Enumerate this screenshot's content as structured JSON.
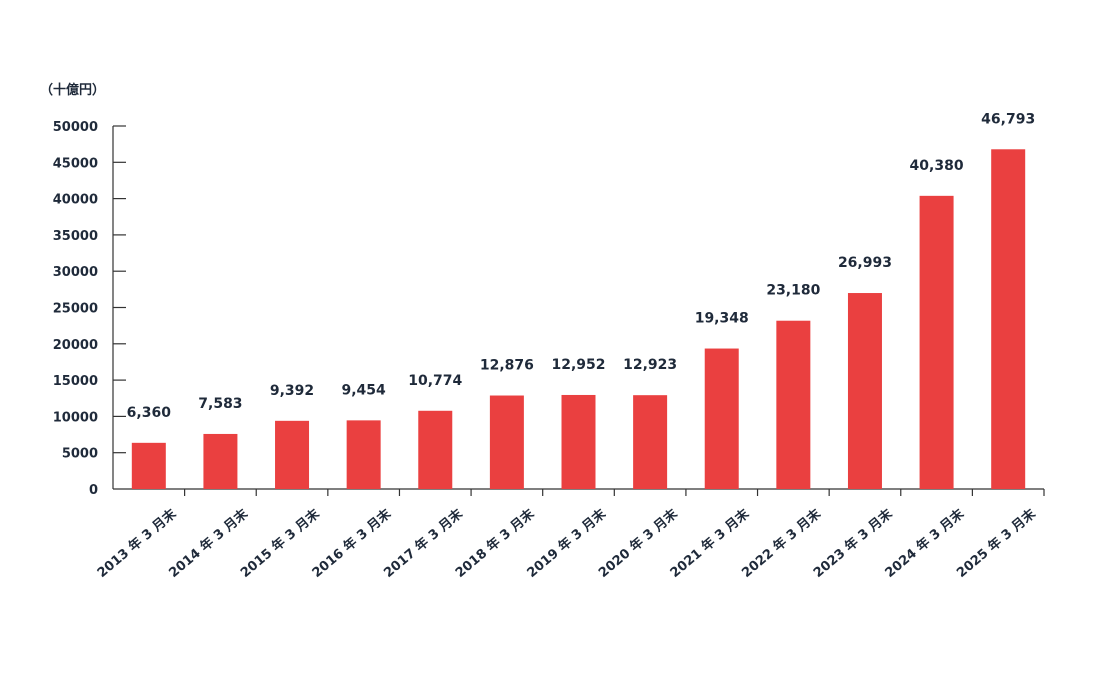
{
  "chart_data": {
    "type": "bar",
    "unit_label": "（十億円）",
    "categories": [
      "2013 年 3 月末",
      "2014 年 3 月末",
      "2015 年 3 月末",
      "2016 年 3 月末",
      "2017 年 3 月末",
      "2018 年 3 月末",
      "2019 年 3 月末",
      "2020 年 3 月末",
      "2021 年 3 月末",
      "2022 年 3 月末",
      "2023 年 3 月末",
      "2024 年 3 月末",
      "2025 年 3 月末"
    ],
    "values": [
      6360,
      7583,
      9392,
      9454,
      10774,
      12876,
      12952,
      12923,
      19348,
      23180,
      26993,
      40380,
      46793
    ],
    "value_labels": [
      "6,360",
      "7,583",
      "9,392",
      "9,454",
      "10,774",
      "12,876",
      "12,952",
      "12,923",
      "19,348",
      "23,180",
      "26,993",
      "40,380",
      "46,793"
    ],
    "yticks": [
      0,
      5000,
      10000,
      15000,
      20000,
      25000,
      30000,
      35000,
      40000,
      45000,
      50000
    ],
    "ytick_labels": [
      "0",
      "5000",
      "10000",
      "15000",
      "20000",
      "25000",
      "30000",
      "35000",
      "40000",
      "45000",
      "50000"
    ],
    "ylim": [
      0,
      50000
    ],
    "bar_color": "#ea4040",
    "grid": false,
    "legend": "none"
  }
}
